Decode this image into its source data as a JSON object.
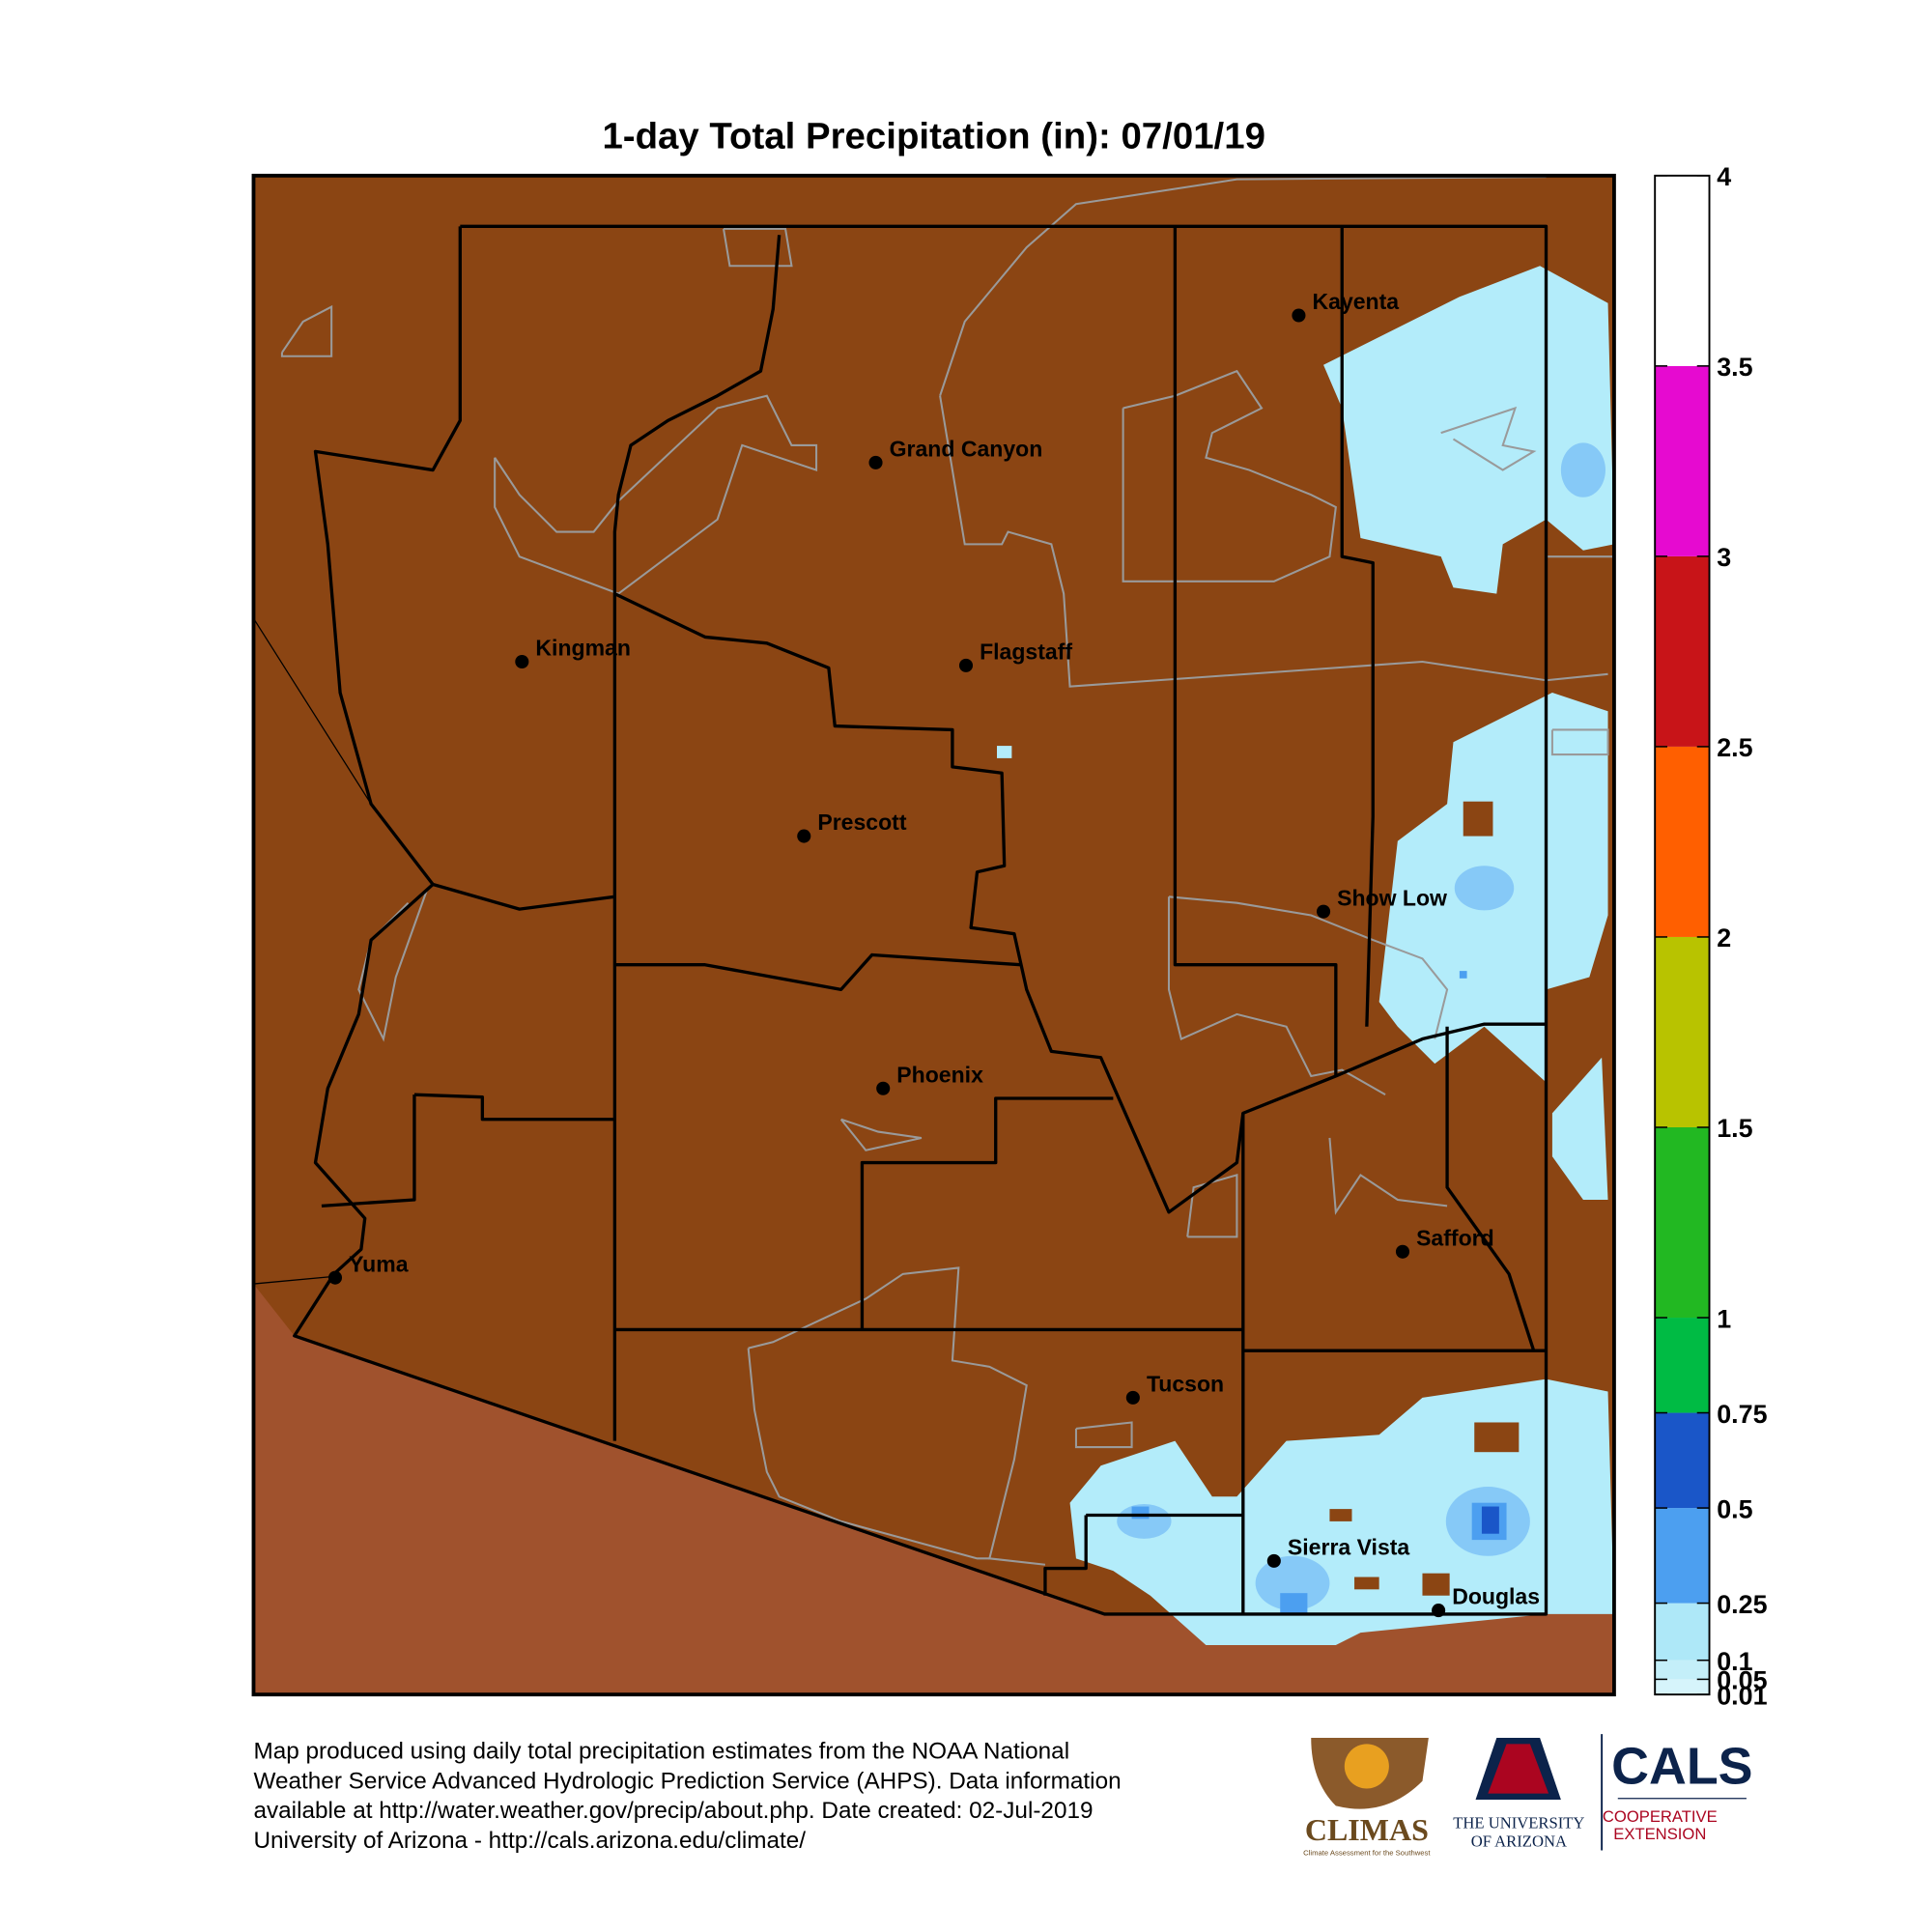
{
  "title": "1-day Total Precipitation (in): 07/01/19",
  "cities": [
    "Kayenta",
    "Grand Canyon",
    "Kingman",
    "Flagstaff",
    "Prescott",
    "Show Low",
    "Phoenix",
    "Yuma",
    "Safford",
    "Tucson",
    "Sierra Vista",
    "Douglas"
  ],
  "colorbar": {
    "ticks": [
      0.01,
      0.05,
      0.1,
      0.25,
      0.5,
      0.75,
      1,
      1.5,
      2,
      2.5,
      3,
      3.5,
      4
    ],
    "colors": [
      "#d6f4fb",
      "#c4eff9",
      "#aee8f8",
      "#4c9ff0",
      "#1a56c8",
      "#00bb44",
      "#22b822",
      "#b8c300",
      "#ff5f00",
      "#c81418",
      "#e60ad0",
      "#ffffff"
    ]
  },
  "footer": [
    "Map produced using daily total precipitation estimates from the NOAA National",
    "Weather Service Advanced Hydrologic Prediction Service (AHPS). Data information",
    "available at http://water.weather.gov/precip/about.php. Date created: 02-Jul-2019",
    "University of Arizona - http://cals.arizona.edu/climate/"
  ],
  "logos": {
    "climas": "CLIMAS",
    "climas_sub": "Climate Assessment for the Southwest",
    "ua": [
      "THE UNIVERSITY",
      "OF ARIZONA"
    ],
    "cals": "CALS",
    "cals_sub": [
      "COOPERATIVE",
      "EXTENSION"
    ]
  }
}
